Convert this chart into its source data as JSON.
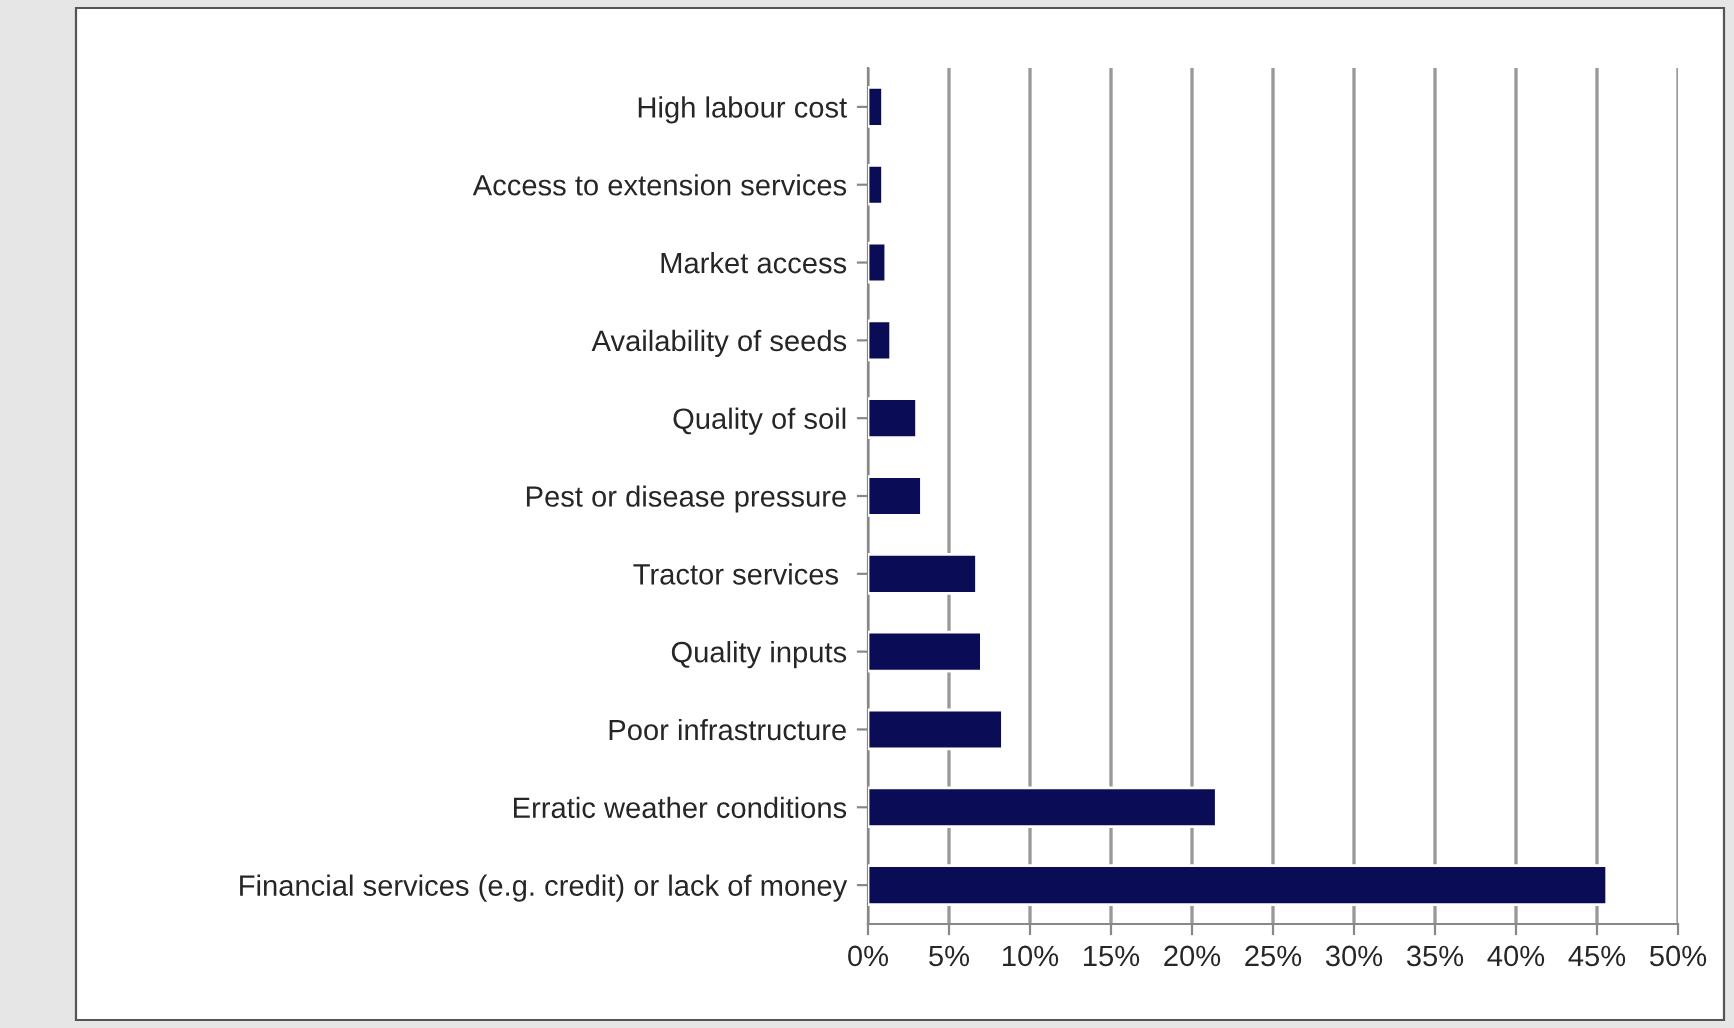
{
  "chart_data": {
    "type": "bar",
    "orientation": "horizontal",
    "categories": [
      "High labour cost",
      "Access to extension services",
      "Market access",
      "Availability of seeds",
      "Quality of soil",
      "Pest or disease pressure",
      "Tractor services ",
      "Quality inputs",
      "Poor infrastructure",
      "Erratic weather conditions",
      "Financial services (e.g. credit) or lack of money"
    ],
    "values": [
      0.9,
      0.9,
      1.1,
      1.4,
      3.0,
      3.3,
      6.7,
      7.0,
      8.3,
      21.5,
      45.6
    ],
    "color": "#0a0c55",
    "xlim": [
      0,
      50
    ],
    "xticks": [
      {
        "value": 0,
        "label": "0%"
      },
      {
        "value": 5,
        "label": "5%"
      },
      {
        "value": 10,
        "label": "10%"
      },
      {
        "value": 15,
        "label": "15%"
      },
      {
        "value": 20,
        "label": "20%"
      },
      {
        "value": 25,
        "label": "25%"
      },
      {
        "value": 30,
        "label": "30%"
      },
      {
        "value": 35,
        "label": "35%"
      },
      {
        "value": 40,
        "label": "40%"
      },
      {
        "value": 45,
        "label": "45%"
      },
      {
        "value": 50,
        "label": "50%"
      }
    ],
    "grid": "x"
  }
}
